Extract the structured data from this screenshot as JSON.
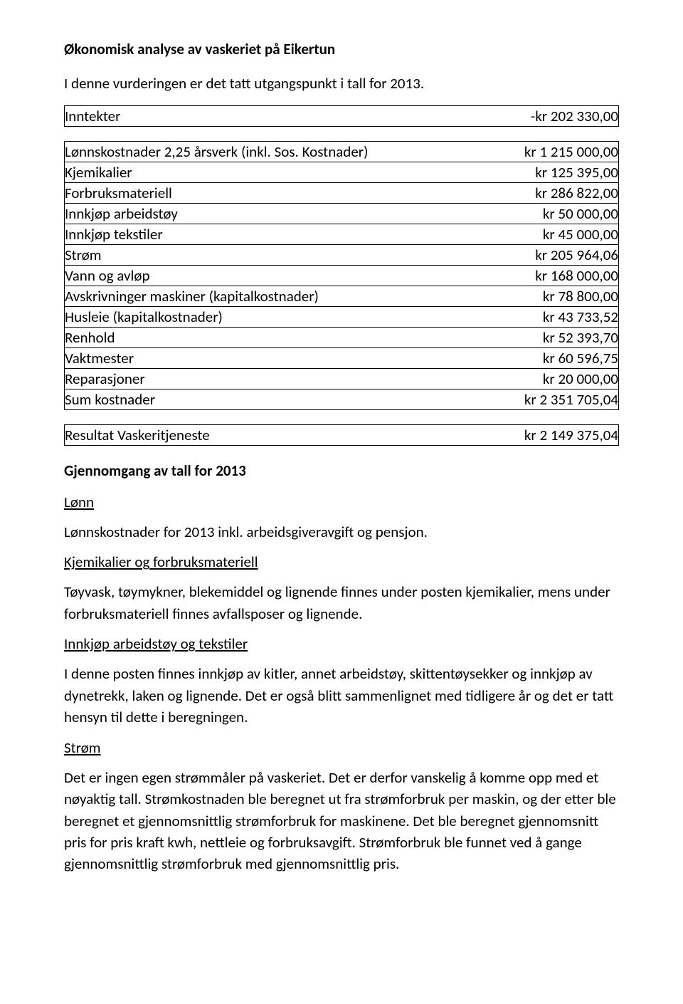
{
  "title": "Økonomisk analyse av vaskeriet på Eikertun",
  "intro": "I denne vurderingen er det tatt utgangspunkt i tall for 2013.",
  "income_row": {
    "label": "Inntekter",
    "amount": "-kr 202 330,00"
  },
  "cost_rows": [
    {
      "label": "Lønnskostnader 2,25 årsverk (inkl. Sos. Kostnader)",
      "amount": "kr 1 215 000,00"
    },
    {
      "label": "Kjemikalier",
      "amount": "kr 125 395,00"
    },
    {
      "label": "Forbruksmateriell",
      "amount": "kr 286 822,00"
    },
    {
      "label": "Innkjøp arbeidstøy",
      "amount": "kr 50 000,00"
    },
    {
      "label": "Innkjøp tekstiler",
      "amount": "kr 45 000,00"
    },
    {
      "label": "Strøm",
      "amount": "kr 205 964,06"
    },
    {
      "label": "Vann og avløp",
      "amount": "kr 168 000,00"
    },
    {
      "label": "Avskrivninger maskiner (kapitalkostnader)",
      "amount": "kr 78 800,00"
    },
    {
      "label": "Husleie (kapitalkostnader)",
      "amount": "kr 43 733,52"
    },
    {
      "label": "Renhold",
      "amount": "kr 52 393,70"
    },
    {
      "label": "Vaktmester",
      "amount": "kr 60 596,75"
    },
    {
      "label": "Reparasjoner",
      "amount": "kr 20 000,00"
    },
    {
      "label": "Sum kostnader",
      "amount": "kr 2 351 705,04"
    }
  ],
  "result_row": {
    "label": "Resultat Vaskeritjeneste",
    "amount": "kr 2 149 375,04"
  },
  "year_head": "Gjennomgang av tall for 2013",
  "sections": {
    "lonn": {
      "head": "Lønn",
      "p": "Lønnskostnader for 2013 inkl. arbeidsgiveravgift og pensjon."
    },
    "kjemi": {
      "head": "Kjemikalier og forbruksmateriell",
      "p": "Tøyvask, tøymykner, blekemiddel og lignende finnes under posten kjemikalier, mens under forbruksmateriell finnes avfallsposer og lignende."
    },
    "arbeid": {
      "head": "Innkjøp arbeidstøy og tekstiler",
      "p": "I denne posten finnes innkjøp av kitler, annet arbeidstøy, skittentøysekker og innkjøp av dynetrekk, laken og lignende. Det er også blitt sammenlignet med tidligere år og det er tatt hensyn til dette i beregningen."
    },
    "strom": {
      "head": "Strøm",
      "p": "Det er ingen egen strømmåler på vaskeriet. Det er derfor vanskelig å komme opp med et nøyaktig tall. Strømkostnaden ble beregnet ut fra strømforbruk per maskin, og der etter ble beregnet et gjennomsnittlig strømforbruk for maskinene. Det ble beregnet gjennomsnitt pris for pris kraft kwh, nettleie og forbruksavgift. Strømforbruk ble funnet ved å gange gjennomsnittlig strømforbruk med gjennomsnittlig pris."
    }
  }
}
